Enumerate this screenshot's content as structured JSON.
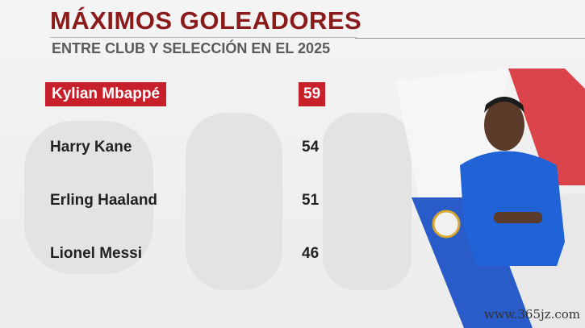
{
  "header": {
    "title": "MÁXIMOS GOLEADORES",
    "subtitle": "ENTRE CLUB Y SELECCIÓN EN EL 2025"
  },
  "table": {
    "rows": [
      [
        "Kylian Mbappé",
        "59"
      ],
      [
        "Harry Kane",
        "54"
      ],
      [
        "Erling Haaland",
        "51"
      ],
      [
        "Lionel Messi",
        "46"
      ]
    ]
  },
  "watermark": "www.365jz.com"
}
